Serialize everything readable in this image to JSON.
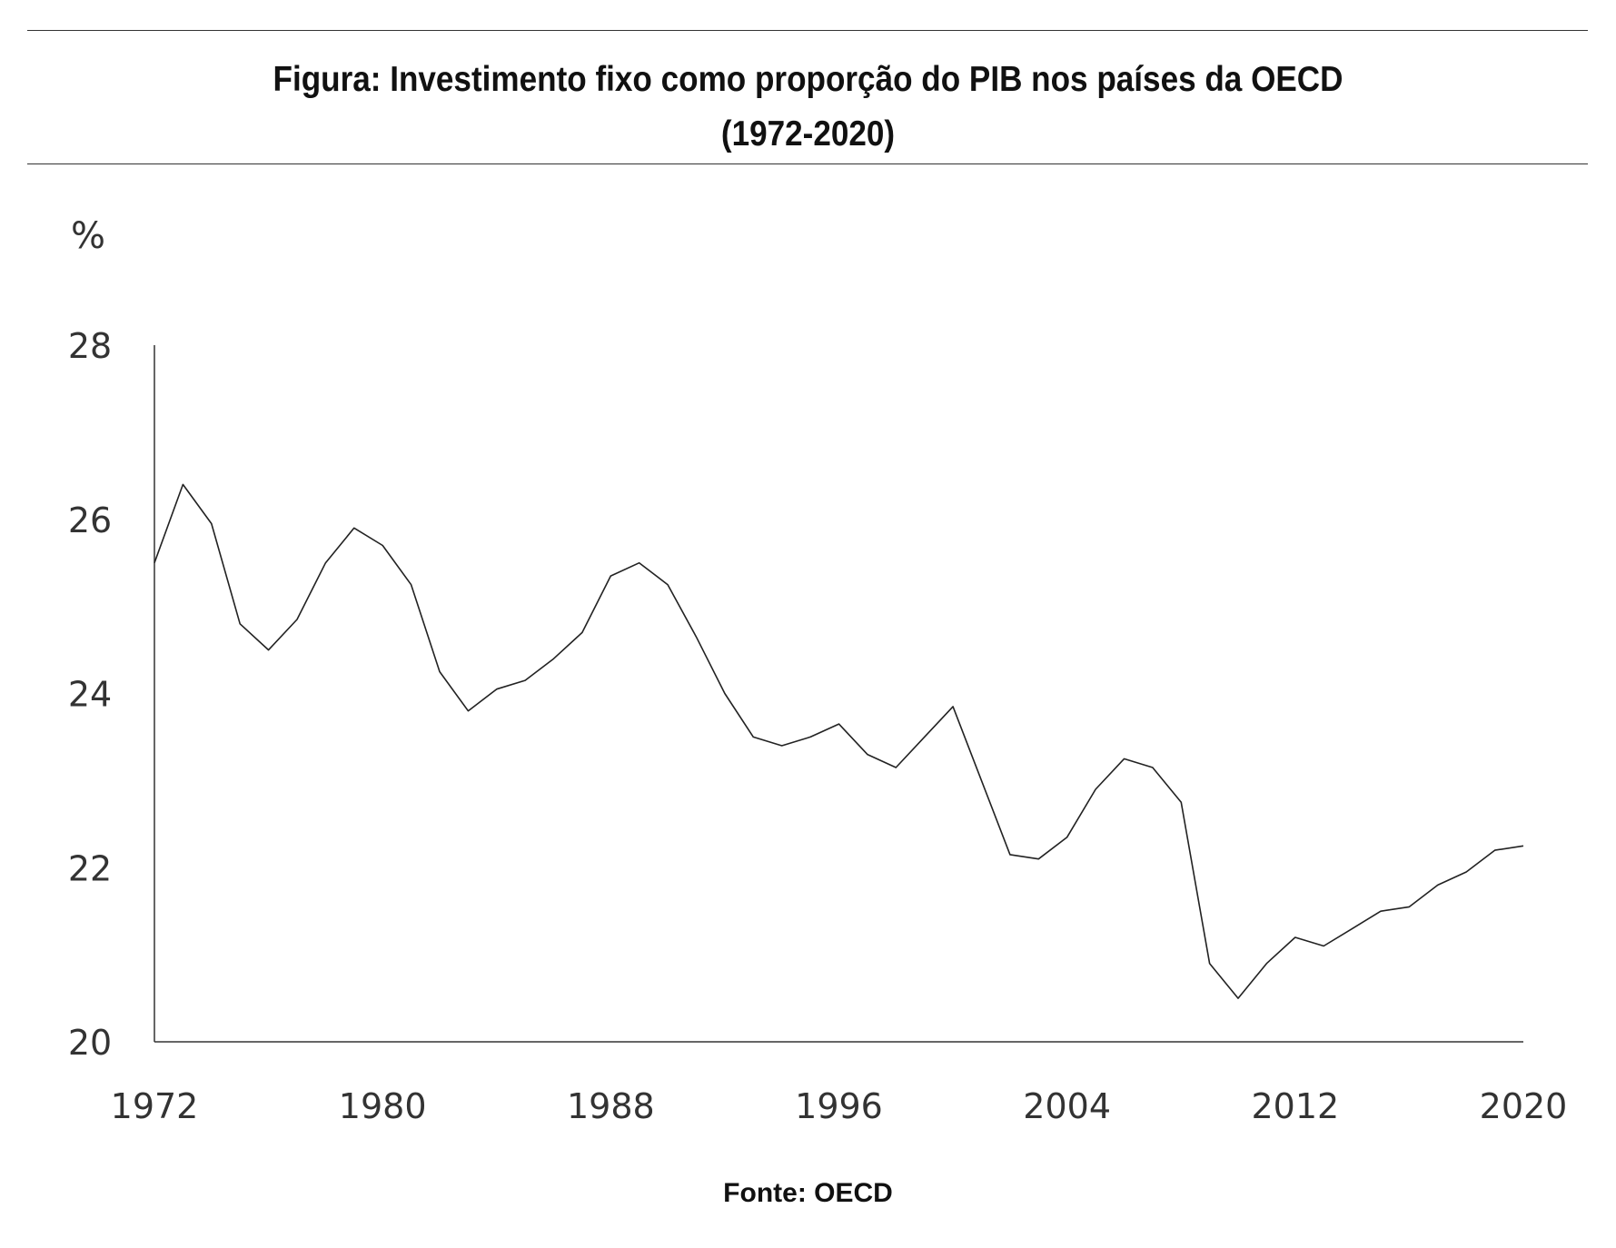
{
  "title_line1": "Figura: Investimento fixo como proporção do PIB nos países da OECD",
  "title_line2": "(1972-2020)",
  "unit_label": "%",
  "source": "Fonte: OECD",
  "chart_data": {
    "type": "line",
    "title": "Figura: Investimento fixo como proporção do PIB nos países da OECD (1972-2020)",
    "xlabel": "",
    "ylabel": "%",
    "xlim": [
      1972,
      2020
    ],
    "ylim": [
      20,
      28
    ],
    "x_ticks": [
      1972,
      1980,
      1988,
      1996,
      2004,
      2012,
      2020
    ],
    "y_ticks": [
      20,
      22,
      24,
      26,
      28
    ],
    "grid": false,
    "line_color": "#222222",
    "x": [
      1972,
      1973,
      1974,
      1975,
      1976,
      1977,
      1978,
      1979,
      1980,
      1981,
      1982,
      1983,
      1984,
      1985,
      1986,
      1987,
      1988,
      1989,
      1990,
      1991,
      1992,
      1993,
      1994,
      1995,
      1996,
      1997,
      1998,
      1999,
      2000,
      2001,
      2002,
      2003,
      2004,
      2005,
      2006,
      2007,
      2008,
      2009,
      2010,
      2011,
      2012,
      2013,
      2014,
      2015,
      2016,
      2017,
      2018,
      2019,
      2020
    ],
    "values": [
      25.5,
      26.4,
      25.95,
      24.8,
      24.5,
      24.85,
      25.5,
      25.9,
      25.7,
      25.25,
      24.25,
      23.8,
      24.05,
      24.15,
      24.4,
      24.7,
      25.35,
      25.5,
      25.25,
      24.65,
      24.0,
      23.5,
      23.4,
      23.5,
      23.65,
      23.3,
      23.15,
      23.5,
      23.85,
      23.0,
      22.15,
      22.1,
      22.35,
      22.9,
      23.25,
      23.15,
      22.75,
      20.9,
      20.5,
      20.9,
      21.2,
      21.1,
      21.3,
      21.5,
      21.55,
      21.8,
      21.95,
      22.2,
      22.25
    ]
  }
}
